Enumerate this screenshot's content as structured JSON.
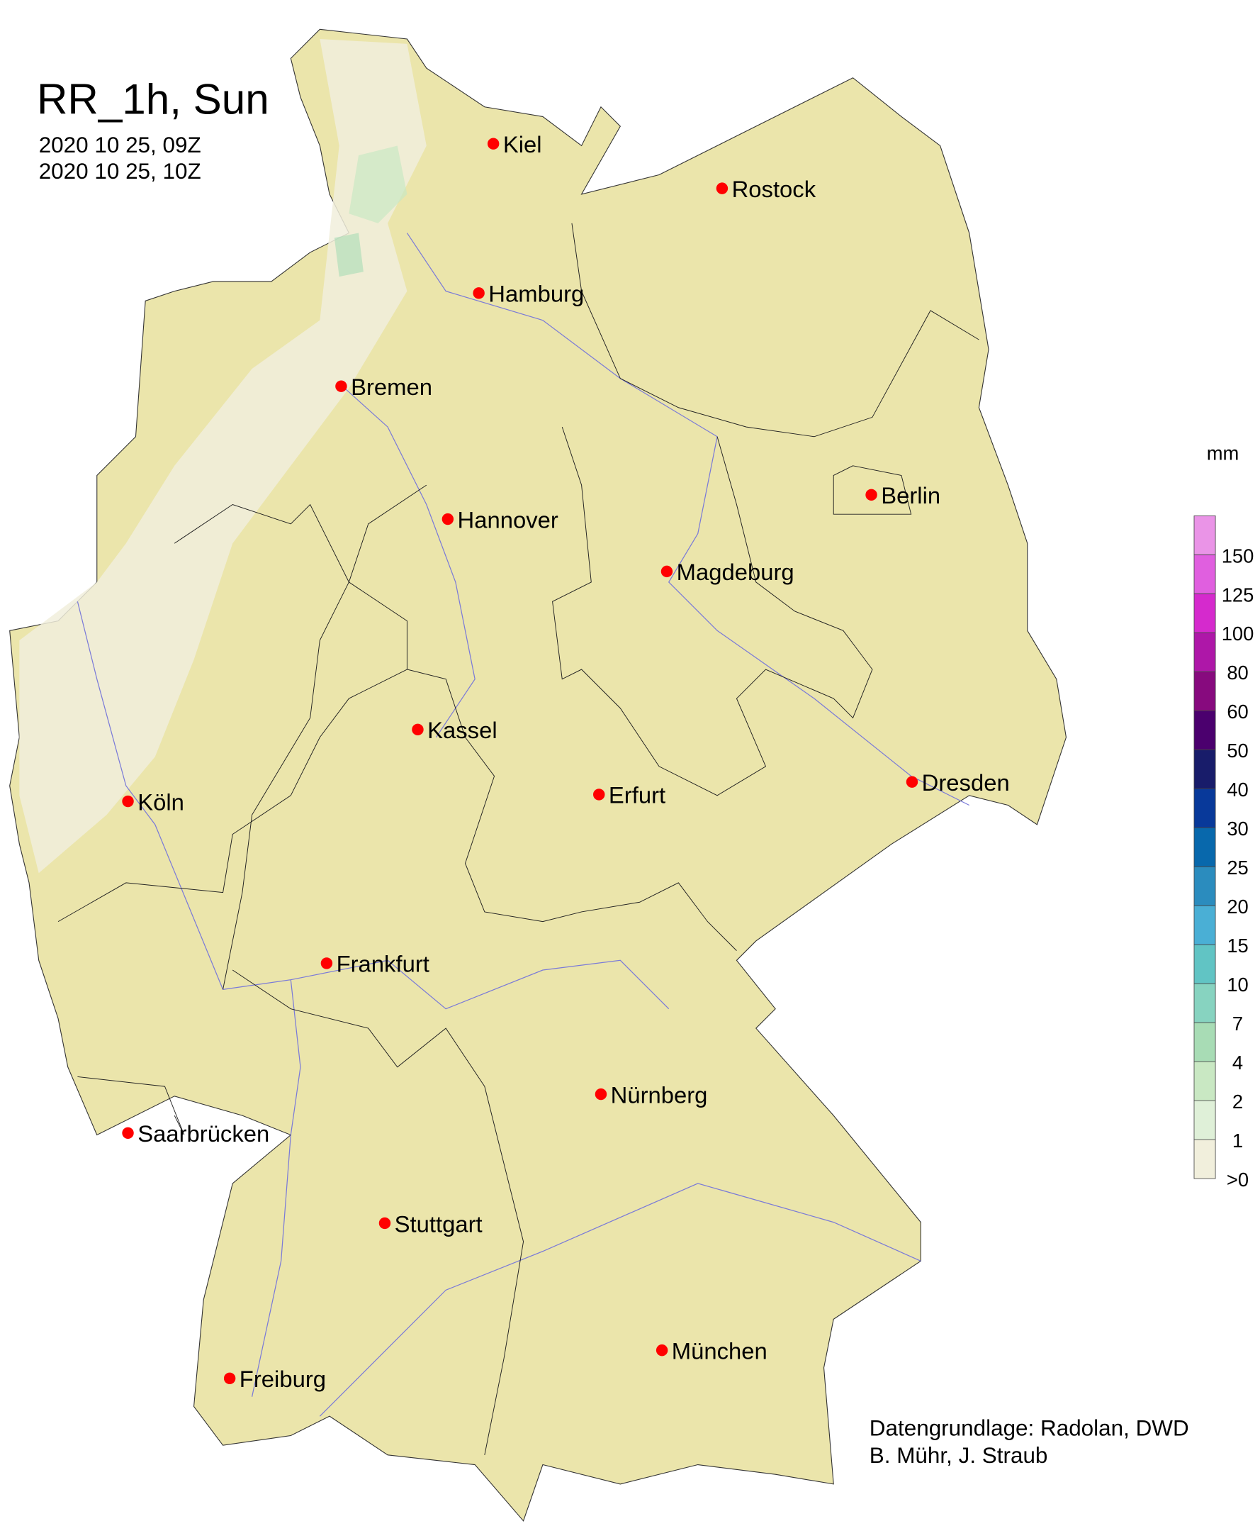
{
  "title": "RR_1h, Sun",
  "time_start": "2020 10 25, 09Z",
  "time_end": "2020 10 25, 10Z",
  "cities": [
    "Kiel",
    "Rostock",
    "Hamburg",
    "Bremen",
    "Berlin",
    "Hannover",
    "Magdeburg",
    "Kassel",
    "Köln",
    "Erfurt",
    "Dresden",
    "Frankfurt",
    "Nürnberg",
    "Saarbrücken",
    "Stuttgart",
    "München",
    "Freiburg"
  ],
  "legend": {
    "unit": "mm",
    "labels": [
      ">0",
      "1",
      "2",
      "4",
      "7",
      "10",
      "15",
      "20",
      "25",
      "30",
      "40",
      "50",
      "60",
      "80",
      "100",
      "125",
      "150"
    ],
    "colors": [
      "#f1efdc",
      "#dff0d8",
      "#c9e8c3",
      "#a8dcb5",
      "#87d3c0",
      "#61c4c4",
      "#4aafd5",
      "#2b8cbe",
      "#0868ac",
      "#08399a",
      "#181c6a",
      "#4b006e",
      "#870a7e",
      "#ae17a8",
      "#d52acd",
      "#e05fdf",
      "#ea94e7"
    ]
  },
  "colors": {
    "land": "#ebe5ab",
    "light_rain": "#f1efdc",
    "city_dot": "#ff0000",
    "river": "#7a7ad8"
  },
  "credits": [
    "Datengrundlage: Radolan, DWD",
    "B. Mühr, J. Straub"
  ]
}
